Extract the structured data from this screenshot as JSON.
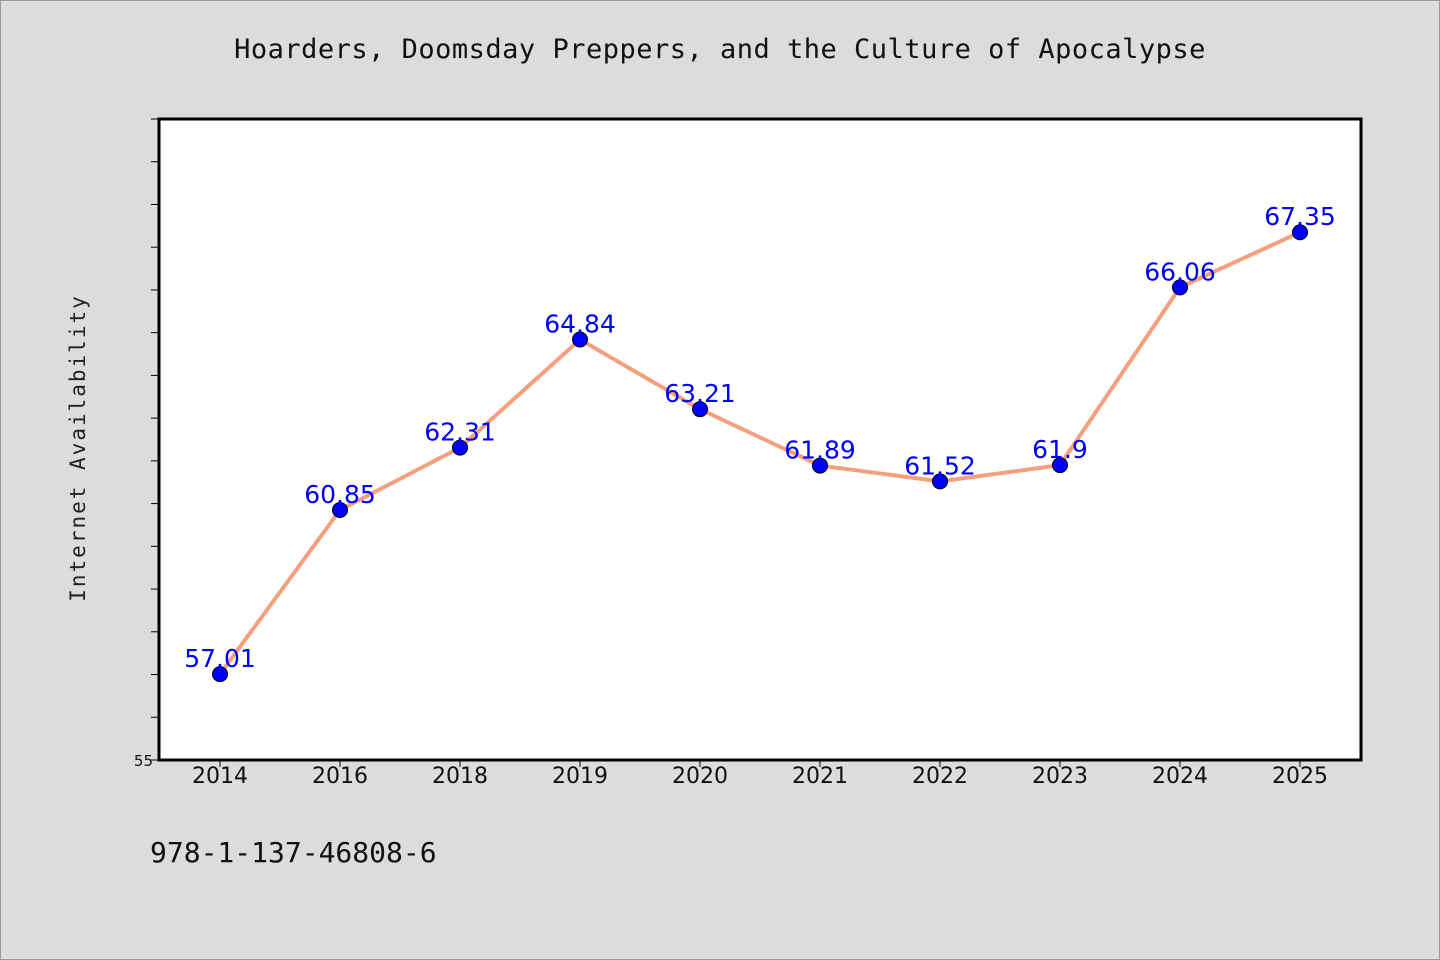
{
  "chart_data": {
    "type": "line",
    "title": "Hoarders, Doomsday Preppers, and the Culture of Apocalypse",
    "xlabel": "",
    "ylabel": "Internet Availability",
    "categories": [
      "2014",
      "2016",
      "2018",
      "2019",
      "2020",
      "2021",
      "2022",
      "2023",
      "2024",
      "2025"
    ],
    "values": [
      57.01,
      60.85,
      62.31,
      64.84,
      63.21,
      61.89,
      61.52,
      61.9,
      66.06,
      67.35
    ],
    "data_labels": [
      "57.01",
      "60.85",
      "62.31",
      "64.84",
      "63.21",
      "61.89",
      "61.52",
      "61.9",
      "66.06",
      "67.35"
    ],
    "ylim": [
      55,
      70
    ],
    "yticks_labeled": [
      "55"
    ],
    "grid": false,
    "legend": "none",
    "colors": {
      "line": "#f4a07e",
      "marker": "#0000ff",
      "label": "#0000ff",
      "plot_background": "#ffffff",
      "figure_background": "#dcdcdc"
    }
  },
  "footer_text": "978-1-137-46808-6"
}
